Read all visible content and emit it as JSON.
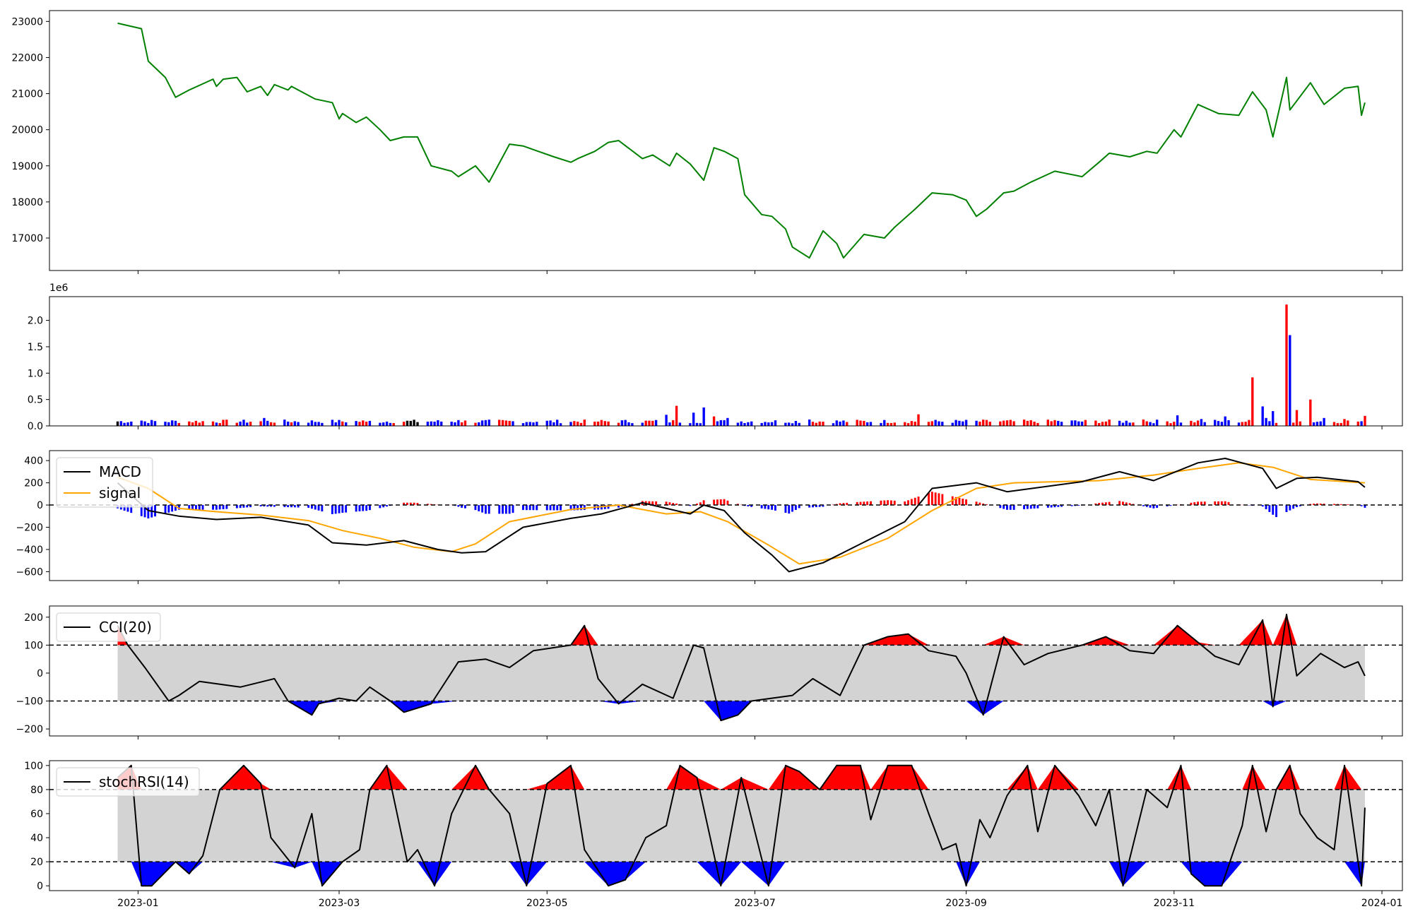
{
  "panels": {
    "price": {
      "color": "#008000",
      "ylim": [
        16100,
        23300
      ],
      "yticks": [
        17000,
        18000,
        19000,
        20000,
        21000,
        22000,
        23000
      ],
      "ytick_labels": [
        "17000",
        "18000",
        "19000",
        "20000",
        "21000",
        "22000",
        "23000"
      ]
    },
    "volume": {
      "ylim": [
        0,
        2450000
      ],
      "yticks": [
        0,
        500000,
        1000000,
        1500000,
        2000000
      ],
      "ytick_labels": [
        "0.0",
        "0.5",
        "1.0",
        "1.5",
        "2.0"
      ],
      "offset_label": "1e6",
      "up_color": "#ff0000",
      "down_color": "#0000ff",
      "flat_color": "#000000"
    },
    "macd": {
      "ylim": [
        -680,
        490
      ],
      "yticks": [
        -600,
        -400,
        -200,
        0,
        200,
        400
      ],
      "ytick_labels": [
        "−600",
        "−400",
        "−200",
        "0",
        "200",
        "400"
      ],
      "legend": [
        "MACD",
        "signal"
      ],
      "macd_color": "#000000",
      "signal_color": "#ffa500",
      "hist_pos_color": "#ff0000",
      "hist_neg_color": "#0000ff"
    },
    "cci": {
      "ylim": [
        -225,
        240
      ],
      "yticks": [
        -200,
        -100,
        0,
        100,
        200
      ],
      "ytick_labels": [
        "−200",
        "−100",
        "0",
        "100",
        "200"
      ],
      "bands": [
        -100,
        100
      ],
      "legend": [
        "CCI(20)"
      ],
      "band_fill": "#d3d3d3"
    },
    "stochrsi": {
      "ylim": [
        -4,
        104
      ],
      "yticks": [
        0,
        20,
        40,
        60,
        80,
        100
      ],
      "ytick_labels": [
        "0",
        "20",
        "40",
        "60",
        "80",
        "100"
      ],
      "bands": [
        20,
        80
      ],
      "legend": [
        "stochRSI(14)"
      ],
      "band_fill": "#d3d3d3"
    }
  },
  "x_axis": {
    "range": [
      "2022-12-06",
      "2024-01-07"
    ],
    "ticks": [
      "2023-01-01",
      "2023-03-01",
      "2023-05-01",
      "2023-07-01",
      "2023-09-01",
      "2023-11-01",
      "2024-01-01"
    ],
    "tick_labels": [
      "2023-01",
      "2023-03",
      "2023-05",
      "2023-07",
      "2023-09",
      "2023-11",
      "2024-01"
    ]
  },
  "chart_data": [
    {
      "type": "line",
      "series": [
        {
          "x": [
            "2022-12-26",
            "2023-01-02",
            "2023-01-04",
            "2023-01-09",
            "2023-01-12",
            "2023-01-13",
            "2023-01-16",
            "2023-01-23",
            "2023-01-24",
            "2023-01-26",
            "2023-01-30",
            "2023-02-02",
            "2023-02-06",
            "2023-02-08",
            "2023-02-10",
            "2023-02-14",
            "2023-02-15",
            "2023-02-20",
            "2023-02-22",
            "2023-02-27",
            "2023-03-01",
            "2023-03-02",
            "2023-03-06",
            "2023-03-09",
            "2023-03-13",
            "2023-03-16",
            "2023-03-20",
            "2023-03-24",
            "2023-03-28",
            "2023-04-03",
            "2023-04-05",
            "2023-04-10",
            "2023-04-14",
            "2023-04-20",
            "2023-04-24",
            "2023-05-03",
            "2023-05-08",
            "2023-05-10",
            "2023-05-15",
            "2023-05-19",
            "2023-05-22",
            "2023-05-29",
            "2023-06-01",
            "2023-06-06",
            "2023-06-08",
            "2023-06-12",
            "2023-06-16",
            "2023-06-19",
            "2023-06-22",
            "2023-06-26",
            "2023-06-28",
            "2023-07-03",
            "2023-07-06",
            "2023-07-10",
            "2023-07-12",
            "2023-07-17",
            "2023-07-21",
            "2023-07-25",
            "2023-07-27",
            "2023-08-02",
            "2023-08-08",
            "2023-08-11",
            "2023-08-17",
            "2023-08-22",
            "2023-08-28",
            "2023-09-01",
            "2023-09-04",
            "2023-09-07",
            "2023-09-12",
            "2023-09-15",
            "2023-09-20",
            "2023-09-27",
            "2023-10-05",
            "2023-10-10",
            "2023-10-13",
            "2023-10-19",
            "2023-10-24",
            "2023-10-27",
            "2023-11-01",
            "2023-11-03",
            "2023-11-08",
            "2023-11-14",
            "2023-11-20",
            "2023-11-24",
            "2023-11-28",
            "2023-11-30",
            "2023-12-04",
            "2023-12-05",
            "2023-12-07",
            "2023-12-11",
            "2023-12-15",
            "2023-12-21",
            "2023-12-25",
            "2023-12-26",
            "2023-12-27"
          ],
          "y": [
            22950,
            22800,
            21900,
            21450,
            20900,
            20950,
            21100,
            21400,
            21200,
            21400,
            21450,
            21050,
            21200,
            20950,
            21250,
            21100,
            21200,
            20950,
            20850,
            20750,
            20300,
            20450,
            20200,
            20350,
            20000,
            19700,
            19800,
            19800,
            19000,
            18850,
            18700,
            19000,
            18550,
            19600,
            19550,
            19250,
            19100,
            19200,
            19400,
            19650,
            19700,
            19200,
            19300,
            19000,
            19350,
            19050,
            18600,
            19500,
            19400,
            19200,
            18200,
            17650,
            17600,
            17250,
            16750,
            16450,
            17200,
            16850,
            16450,
            17100,
            17000,
            17300,
            17800,
            18250,
            18200,
            18050,
            17600,
            17800,
            18250,
            18300,
            18550,
            18850,
            18700,
            19100,
            19350,
            19250,
            19400,
            19350,
            20000,
            19800,
            20700,
            20450,
            20400,
            21050,
            20550,
            19800,
            21450,
            20550,
            20800,
            21300,
            20700,
            21150,
            21200,
            20400,
            20750
          ]
        }
      ]
    },
    {
      "type": "bar",
      "series": [
        {
          "x": [
            "2023-01-02",
            "2023-02-07",
            "2023-03-09",
            "2023-04-05",
            "2023-05-15",
            "2023-06-05",
            "2023-06-08",
            "2023-06-13",
            "2023-06-16",
            "2023-06-19",
            "2023-06-23",
            "2023-07-17",
            "2023-08-18",
            "2023-09-27",
            "2023-10-23",
            "2023-11-02",
            "2023-11-09",
            "2023-11-16",
            "2023-11-24",
            "2023-11-27",
            "2023-11-28",
            "2023-11-30",
            "2023-12-04",
            "2023-12-05",
            "2023-12-07",
            "2023-12-11",
            "2023-12-15",
            "2023-12-21",
            "2023-12-27"
          ],
          "y": [
            100000,
            150000,
            80000,
            110000,
            80000,
            210000,
            380000,
            250000,
            350000,
            180000,
            150000,
            120000,
            220000,
            110000,
            120000,
            200000,
            130000,
            180000,
            920000,
            370000,
            150000,
            280000,
            2300000,
            1720000,
            300000,
            500000,
            150000,
            130000,
            190000
          ]
        }
      ]
    },
    {
      "type": "line",
      "series": [
        {
          "name": "MACD",
          "x": [
            "2022-12-26",
            "2023-01-04",
            "2023-01-13",
            "2023-01-24",
            "2023-02-06",
            "2023-02-20",
            "2023-02-27",
            "2023-03-09",
            "2023-03-20",
            "2023-03-30",
            "2023-04-06",
            "2023-04-13",
            "2023-04-24",
            "2023-05-08",
            "2023-05-17",
            "2023-05-29",
            "2023-06-12",
            "2023-06-16",
            "2023-06-22",
            "2023-06-28",
            "2023-07-06",
            "2023-07-11",
            "2023-07-21",
            "2023-08-01",
            "2023-08-14",
            "2023-08-22",
            "2023-09-04",
            "2023-09-13",
            "2023-10-05",
            "2023-10-16",
            "2023-10-26",
            "2023-11-08",
            "2023-11-16",
            "2023-11-27",
            "2023-12-01",
            "2023-12-07",
            "2023-12-13",
            "2023-12-25",
            "2023-12-27"
          ],
          "y": [
            200,
            -50,
            -100,
            -130,
            -110,
            -180,
            -340,
            -360,
            -320,
            -400,
            -430,
            -420,
            -200,
            -120,
            -80,
            20,
            -80,
            0,
            -50,
            -250,
            -450,
            -600,
            -520,
            -350,
            -150,
            150,
            200,
            120,
            210,
            300,
            220,
            380,
            420,
            330,
            150,
            240,
            250,
            210,
            160
          ]
        },
        {
          "name": "signal",
          "x": [
            "2022-12-26",
            "2023-01-04",
            "2023-01-13",
            "2023-01-24",
            "2023-02-06",
            "2023-02-20",
            "2023-03-02",
            "2023-03-13",
            "2023-03-23",
            "2023-04-03",
            "2023-04-10",
            "2023-04-20",
            "2023-05-08",
            "2023-05-22",
            "2023-06-05",
            "2023-06-15",
            "2023-06-23",
            "2023-07-05",
            "2023-07-14",
            "2023-07-26",
            "2023-08-09",
            "2023-08-22",
            "2023-09-04",
            "2023-09-15",
            "2023-10-10",
            "2023-10-26",
            "2023-11-08",
            "2023-11-20",
            "2023-11-30",
            "2023-12-11",
            "2023-12-27"
          ],
          "y": [
            250,
            150,
            -30,
            -60,
            -90,
            -140,
            -230,
            -300,
            -380,
            -420,
            -350,
            -150,
            -40,
            0,
            -80,
            -60,
            -150,
            -360,
            -530,
            -470,
            -300,
            -50,
            150,
            200,
            220,
            270,
            330,
            380,
            340,
            230,
            200
          ]
        }
      ],
      "histogram_note": "MACD minus signal, red above 0, blue below 0"
    },
    {
      "type": "line",
      "series": [
        {
          "name": "CCI(20)",
          "x": [
            "2022-12-26",
            "2022-12-29",
            "2023-01-03",
            "2023-01-10",
            "2023-01-13",
            "2023-01-19",
            "2023-01-31",
            "2023-02-10",
            "2023-02-14",
            "2023-02-21",
            "2023-02-23",
            "2023-03-01",
            "2023-03-06",
            "2023-03-10",
            "2023-03-16",
            "2023-03-20",
            "2023-03-28",
            "2023-04-05",
            "2023-04-13",
            "2023-04-20",
            "2023-04-27",
            "2023-05-08",
            "2023-05-12",
            "2023-05-16",
            "2023-05-22",
            "2023-05-29",
            "2023-06-07",
            "2023-06-13",
            "2023-06-16",
            "2023-06-21",
            "2023-06-26",
            "2023-06-30",
            "2023-07-12",
            "2023-07-18",
            "2023-07-26",
            "2023-08-02",
            "2023-08-09",
            "2023-08-15",
            "2023-08-21",
            "2023-08-29",
            "2023-09-01",
            "2023-09-06",
            "2023-09-12",
            "2023-09-18",
            "2023-09-25",
            "2023-10-05",
            "2023-10-12",
            "2023-10-19",
            "2023-10-26",
            "2023-11-02",
            "2023-11-08",
            "2023-11-13",
            "2023-11-20",
            "2023-11-27",
            "2023-11-30",
            "2023-12-04",
            "2023-12-07",
            "2023-12-14",
            "2023-12-21",
            "2023-12-25",
            "2023-12-27"
          ],
          "y": [
            170,
            100,
            20,
            -100,
            -80,
            -30,
            -50,
            -20,
            -100,
            -150,
            -110,
            -90,
            -100,
            -50,
            -100,
            -140,
            -110,
            40,
            50,
            20,
            80,
            100,
            170,
            -20,
            -110,
            -40,
            -90,
            100,
            90,
            -170,
            -150,
            -100,
            -80,
            -20,
            -80,
            100,
            130,
            140,
            80,
            60,
            0,
            -150,
            130,
            30,
            70,
            100,
            130,
            80,
            70,
            170,
            110,
            60,
            30,
            190,
            -120,
            210,
            -10,
            70,
            20,
            40,
            -10
          ]
        }
      ]
    },
    {
      "type": "line",
      "series": [
        {
          "name": "stochRSI(14)",
          "x": [
            "2022-12-26",
            "2022-12-30",
            "2023-01-02",
            "2023-01-05",
            "2023-01-12",
            "2023-01-16",
            "2023-01-20",
            "2023-01-25",
            "2023-02-01",
            "2023-02-06",
            "2023-02-09",
            "2023-02-16",
            "2023-02-21",
            "2023-02-24",
            "2023-03-02",
            "2023-03-07",
            "2023-03-10",
            "2023-03-15",
            "2023-03-21",
            "2023-03-24",
            "2023-03-29",
            "2023-04-03",
            "2023-04-10",
            "2023-04-14",
            "2023-04-20",
            "2023-04-25",
            "2023-05-01",
            "2023-05-08",
            "2023-05-12",
            "2023-05-19",
            "2023-05-24",
            "2023-05-30",
            "2023-06-05",
            "2023-06-09",
            "2023-06-14",
            "2023-06-21",
            "2023-06-27",
            "2023-07-05",
            "2023-07-10",
            "2023-07-14",
            "2023-07-20",
            "2023-07-25",
            "2023-08-01",
            "2023-08-04",
            "2023-08-09",
            "2023-08-16",
            "2023-08-21",
            "2023-08-25",
            "2023-08-29",
            "2023-09-01",
            "2023-09-05",
            "2023-09-08",
            "2023-09-13",
            "2023-09-19",
            "2023-09-22",
            "2023-09-27",
            "2023-10-04",
            "2023-10-09",
            "2023-10-13",
            "2023-10-17",
            "2023-10-24",
            "2023-10-30",
            "2023-11-03",
            "2023-11-06",
            "2023-11-10",
            "2023-11-15",
            "2023-11-21",
            "2023-11-24",
            "2023-11-28",
            "2023-12-01",
            "2023-12-05",
            "2023-12-08",
            "2023-12-13",
            "2023-12-18",
            "2023-12-21",
            "2023-12-26",
            "2023-12-27"
          ],
          "y": [
            90,
            100,
            0,
            0,
            20,
            10,
            25,
            80,
            100,
            85,
            40,
            15,
            60,
            0,
            20,
            30,
            80,
            100,
            20,
            30,
            0,
            60,
            100,
            80,
            60,
            0,
            85,
            100,
            30,
            0,
            5,
            40,
            50,
            100,
            90,
            0,
            90,
            0,
            100,
            95,
            80,
            100,
            100,
            55,
            100,
            100,
            60,
            30,
            35,
            0,
            55,
            40,
            75,
            100,
            45,
            100,
            75,
            50,
            80,
            0,
            80,
            65,
            100,
            10,
            0,
            0,
            50,
            100,
            45,
            80,
            100,
            60,
            40,
            30,
            100,
            0,
            65
          ]
        }
      ]
    }
  ]
}
